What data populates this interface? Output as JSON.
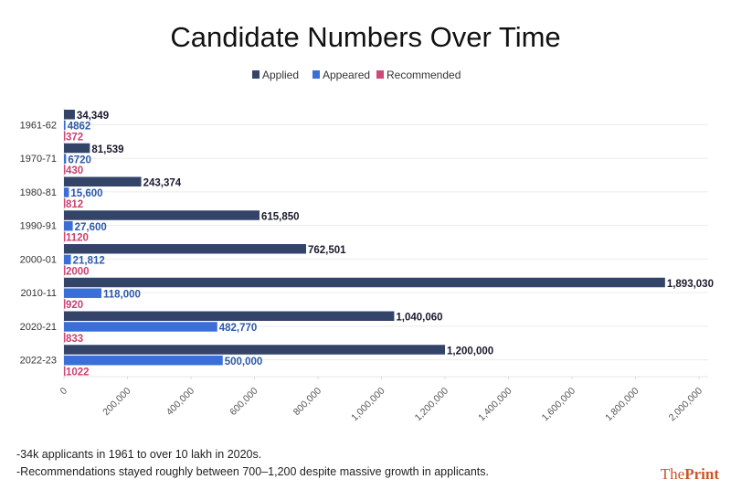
{
  "chart_data": {
    "type": "bar",
    "orientation": "horizontal",
    "title": "Candidate Numbers Over Time",
    "categories": [
      "1961-62",
      "1970-71",
      "1980-81",
      "1990-91",
      "2000-01",
      "2010-11",
      "2020-21",
      "2022-23"
    ],
    "series": [
      {
        "name": "Applied",
        "color": "#344468",
        "values": [
          34349,
          81539,
          243374,
          615850,
          762501,
          1893030,
          1040060,
          1200000
        ],
        "labels": [
          "34,349",
          "81,539",
          "243,374",
          "615,850",
          "762,501",
          "1,893,030",
          "1,040,060",
          "1,200,000"
        ],
        "label_color": "#1a1a2e"
      },
      {
        "name": "Appeared",
        "color": "#3a6fd8",
        "values": [
          4862,
          6720,
          15600,
          27600,
          21812,
          118000,
          482770,
          500000
        ],
        "labels": [
          "4862",
          "6720",
          "15,600",
          "27,600",
          "21,812",
          "118,000",
          "482,770",
          "500,000"
        ],
        "label_color": "#2c5aa8"
      },
      {
        "name": "Recommended",
        "color": "#d0487a",
        "values": [
          372,
          430,
          812,
          1120,
          2000,
          920,
          833,
          1022
        ],
        "labels": [
          "372",
          "430",
          "812",
          "1120",
          "2000",
          "920",
          "833",
          "1022"
        ],
        "label_color": "#c9406f"
      }
    ],
    "xlim": [
      0,
      2000000
    ],
    "xticks": [
      "0",
      "200,000",
      "400,000",
      "600,000",
      "800,000",
      "1,000,000",
      "1,200,000",
      "1,400,000",
      "1,600,000",
      "1,800,000",
      "2,000,000"
    ],
    "legend_position": "top",
    "grid": true
  },
  "notes": [
    "-34k applicants in 1961 to over 10 lakh in 2020s.",
    "-Recommendations stayed roughly between 700–1,200 despite massive growth in applicants."
  ],
  "logo": {
    "text_a": "The",
    "text_b": "Print"
  }
}
